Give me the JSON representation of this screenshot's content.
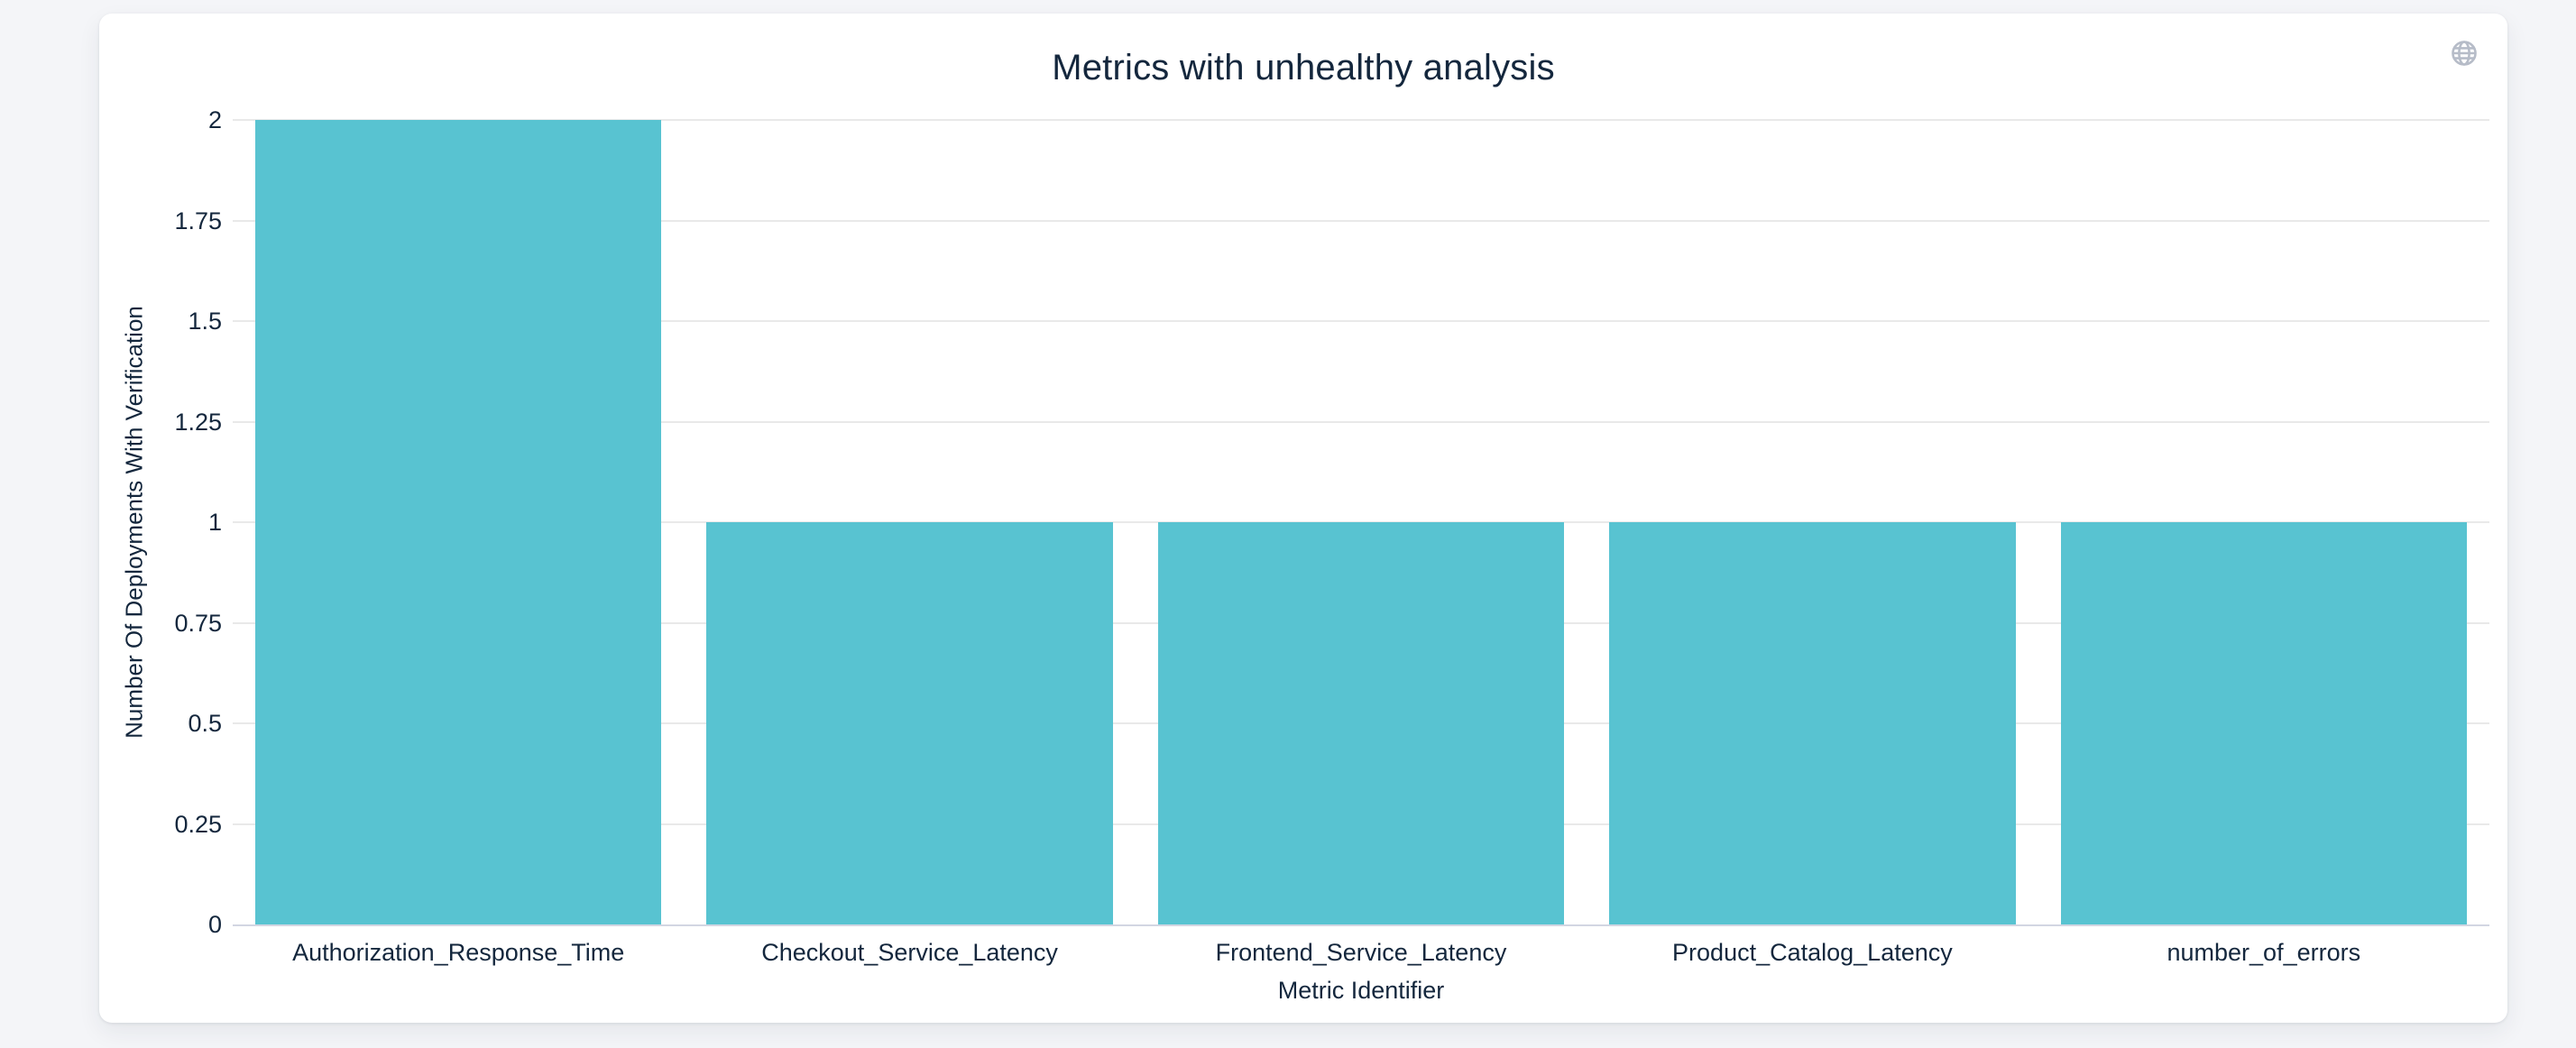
{
  "page": {
    "background_color": "#f4f5f8"
  },
  "card": {
    "background_color": "#ffffff"
  },
  "toolbar": {
    "icon": "globe",
    "icon_color": "#b6bcc8"
  },
  "colors": {
    "bar": "#58c3d1",
    "gridline": "#e9e9e9",
    "axis_line": "#d2d6e2",
    "text": "#14273d"
  },
  "chart_data": {
    "type": "bar",
    "title": "Metrics with unhealthy analysis",
    "xlabel": "Metric Identifier",
    "ylabel": "Number Of Deployments With Verification",
    "categories": [
      "Authorization_Response_Time",
      "Checkout_Service_Latency",
      "Frontend_Service_Latency",
      "Product_Catalog_Latency",
      "number_of_errors"
    ],
    "values": [
      2,
      1,
      1,
      1,
      1
    ],
    "ylim": [
      0,
      2
    ],
    "ytick_step": 0.25,
    "ytick_labels": [
      "0",
      "0.25",
      "0.5",
      "0.75",
      "1",
      "1.25",
      "1.5",
      "1.75",
      "2"
    ],
    "grid": true,
    "legend_position": "none",
    "bar_color": "#58c3d1"
  }
}
